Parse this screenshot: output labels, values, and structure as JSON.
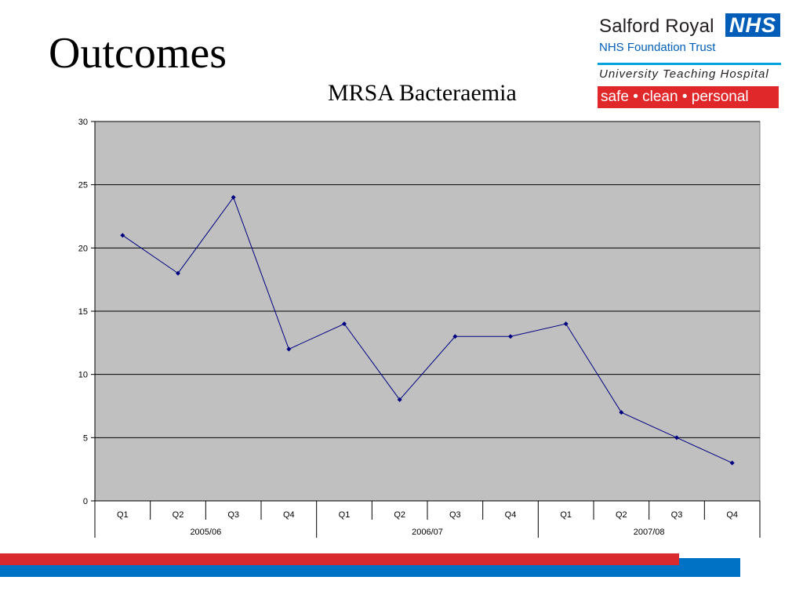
{
  "slide": {
    "title": "Outcomes"
  },
  "logo": {
    "organisation": "Salford Royal",
    "badge": "NHS",
    "trust": "NHS Foundation Trust",
    "subtitle": "University Teaching Hospital",
    "tagline": "safe • clean • personal"
  },
  "colors": {
    "plot_background": "#c0c0c0",
    "series_line": "#000080",
    "gridline": "#000000",
    "nhs_blue": "#005eb8",
    "stripe_red": "#d92b2f",
    "stripe_blue": "#0072c6"
  },
  "chart_data": {
    "type": "line",
    "title": "MRSA Bacteraemia",
    "xlabel": "",
    "ylabel": "",
    "ylim": [
      0,
      30
    ],
    "yticks": [
      0,
      5,
      10,
      15,
      20,
      25,
      30
    ],
    "grid": true,
    "legend": "none",
    "categories": [
      "Q1",
      "Q2",
      "Q3",
      "Q4",
      "Q1",
      "Q2",
      "Q3",
      "Q4",
      "Q1",
      "Q2",
      "Q3",
      "Q4"
    ],
    "groups": [
      {
        "label": "2005/06",
        "span": 4
      },
      {
        "label": "2006/07",
        "span": 4
      },
      {
        "label": "2007/08",
        "span": 4
      }
    ],
    "series": [
      {
        "values": [
          21,
          18,
          24,
          12,
          14,
          8,
          13,
          13,
          14,
          7,
          5,
          3
        ]
      }
    ]
  }
}
